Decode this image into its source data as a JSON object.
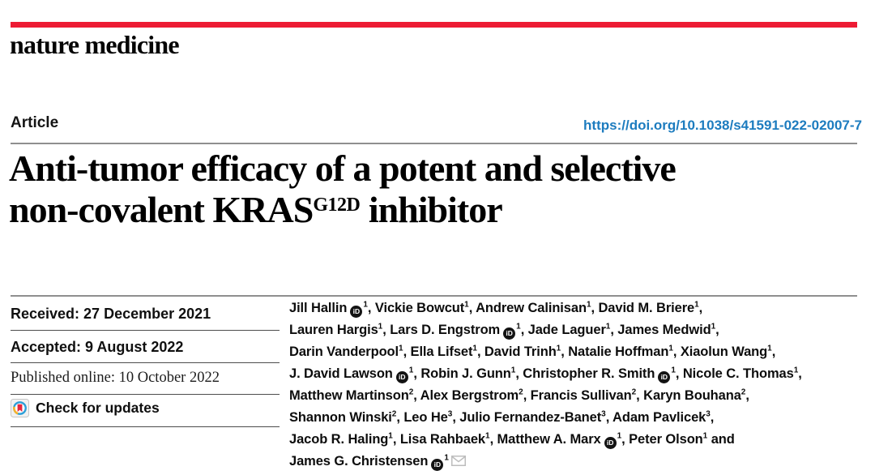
{
  "masthead": {
    "logo": "nature medicine"
  },
  "header": {
    "kicker": "Article",
    "doi": "https://doi.org/10.1038/s41591-022-02007-7"
  },
  "title": {
    "line1": "Anti-tumor efficacy of a potent and selective",
    "line2_pre": "non-covalent KRAS",
    "line2_sup": "G12D",
    "line2_post": " inhibitor"
  },
  "dates": {
    "received": "Received: 27 December 2021",
    "accepted": "Accepted: 9 August 2022",
    "published": "Published online: 10 October 2022"
  },
  "check_for_updates": {
    "label": "Check for updates"
  },
  "authors": {
    "lines": [
      [
        {
          "t": "Jill Hallin",
          "orcid": true,
          "sup": "1",
          "tail": ", "
        },
        {
          "t": "Vickie Bowcut",
          "sup": "1",
          "tail": ", "
        },
        {
          "t": "Andrew Calinisan",
          "sup": "1",
          "tail": ", "
        },
        {
          "t": "David M. Briere",
          "sup": "1",
          "tail": ","
        }
      ],
      [
        {
          "t": "Lauren Hargis",
          "sup": "1",
          "tail": ", "
        },
        {
          "t": "Lars D. Engstrom",
          "orcid": true,
          "sup": "1",
          "tail": ", "
        },
        {
          "t": "Jade Laguer",
          "sup": "1",
          "tail": ", "
        },
        {
          "t": "James Medwid",
          "sup": "1",
          "tail": ","
        }
      ],
      [
        {
          "t": "Darin Vanderpool",
          "sup": "1",
          "tail": ", "
        },
        {
          "t": "Ella Lifset",
          "sup": "1",
          "tail": ", "
        },
        {
          "t": "David Trinh",
          "sup": "1",
          "tail": ", "
        },
        {
          "t": "Natalie Hoffman",
          "sup": "1",
          "tail": ", "
        },
        {
          "t": "Xiaolun Wang",
          "sup": "1",
          "tail": ","
        }
      ],
      [
        {
          "t": "J. David Lawson",
          "orcid": true,
          "sup": "1",
          "tail": ", "
        },
        {
          "t": "Robin J. Gunn",
          "sup": "1",
          "tail": ", "
        },
        {
          "t": "Christopher R. Smith",
          "orcid": true,
          "sup": "1",
          "tail": ", "
        },
        {
          "t": "Nicole C. Thomas",
          "sup": "1",
          "tail": ","
        }
      ],
      [
        {
          "t": "Matthew Martinson",
          "sup": "2",
          "tail": ", "
        },
        {
          "t": "Alex Bergstrom",
          "sup": "2",
          "tail": ", "
        },
        {
          "t": "Francis Sullivan",
          "sup": "2",
          "tail": ", "
        },
        {
          "t": "Karyn Bouhana",
          "sup": "2",
          "tail": ","
        }
      ],
      [
        {
          "t": "Shannon Winski",
          "sup": "2",
          "tail": ", "
        },
        {
          "t": "Leo He",
          "sup": "3",
          "tail": ", "
        },
        {
          "t": "Julio Fernandez-Banet",
          "sup": "3",
          "tail": ", "
        },
        {
          "t": "Adam Pavlicek",
          "sup": "3",
          "tail": ","
        }
      ],
      [
        {
          "t": "Jacob R. Haling",
          "sup": "1",
          "tail": ", "
        },
        {
          "t": "Lisa Rahbaek",
          "sup": "1",
          "tail": ", "
        },
        {
          "t": "Matthew A. Marx",
          "orcid": true,
          "sup": "1",
          "tail": ", "
        },
        {
          "t": "Peter Olson",
          "sup": "1",
          "tail": " and"
        }
      ],
      [
        {
          "t": "James G. Christensen",
          "orcid": true,
          "sup": "1",
          "envelope": true
        }
      ]
    ]
  },
  "colors": {
    "brand_red": "#ed1b34",
    "link_blue": "#1d7cbf",
    "rule_gray": "#8f8f8f"
  }
}
